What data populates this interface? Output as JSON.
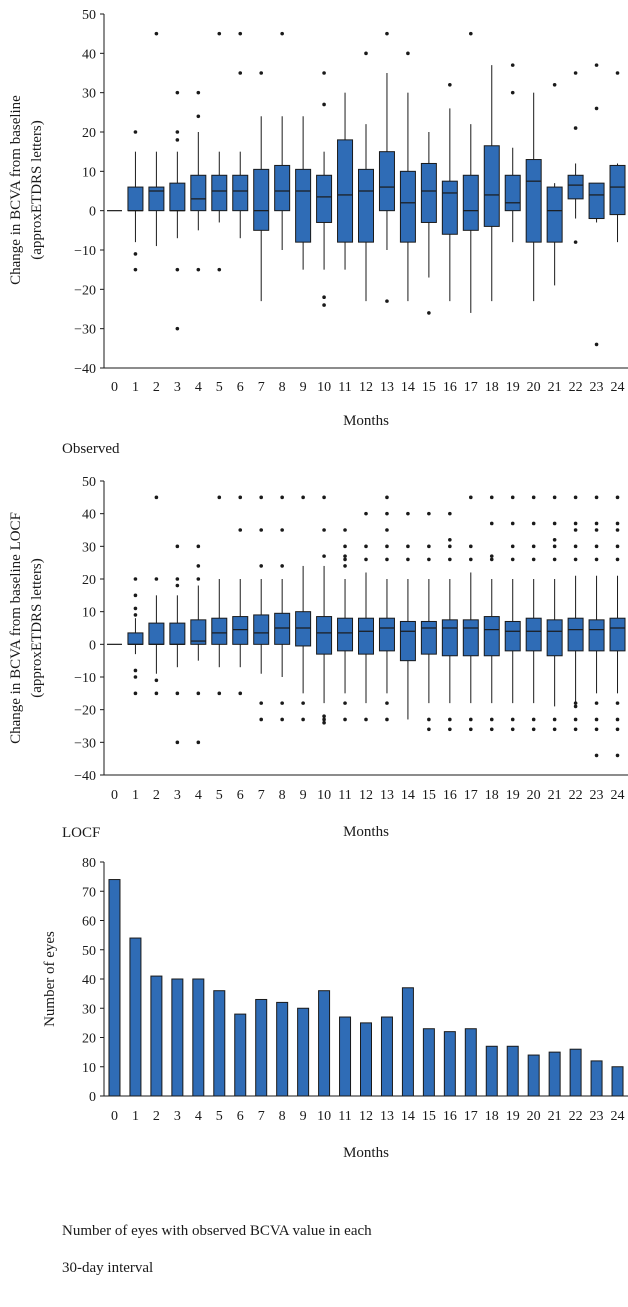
{
  "colors": {
    "fill": "#2f6cb6",
    "edge": "#1a1a1a"
  },
  "chart_data": [
    {
      "type": "box",
      "title": "",
      "xlabel": "Months",
      "ylabel_lines": [
        "Change in BCVA from baseline",
        "(approxETDRS letters)"
      ],
      "ylim": [
        -40,
        50
      ],
      "yticks": [
        -40,
        -30,
        -20,
        -10,
        0,
        10,
        20,
        30,
        40,
        50
      ],
      "categories": [
        "0",
        "1",
        "2",
        "3",
        "4",
        "5",
        "6",
        "7",
        "8",
        "9",
        "10",
        "11",
        "12",
        "13",
        "14",
        "15",
        "16",
        "17",
        "18",
        "19",
        "20",
        "21",
        "22",
        "23",
        "24"
      ],
      "caption": "Observed",
      "boxes": [
        {
          "lw": 0,
          "q1": 0,
          "med": 0,
          "q3": 0,
          "uw": 0,
          "out": []
        },
        {
          "lw": -8,
          "q1": 0,
          "med": 0,
          "q3": 6,
          "uw": 15,
          "out": [
            20,
            -11,
            -15
          ]
        },
        {
          "lw": -9,
          "q1": 0,
          "med": 5,
          "q3": 6,
          "uw": 15,
          "out": [
            45
          ]
        },
        {
          "lw": -7,
          "q1": 0,
          "med": 0,
          "q3": 7,
          "uw": 15,
          "out": [
            30,
            20,
            18,
            -15,
            -30
          ]
        },
        {
          "lw": -5,
          "q1": 0,
          "med": 3,
          "q3": 9,
          "uw": 20,
          "out": [
            30,
            24,
            -15
          ]
        },
        {
          "lw": -3,
          "q1": 0,
          "med": 5,
          "q3": 9,
          "uw": 15,
          "out": [
            45,
            -15
          ]
        },
        {
          "lw": -7,
          "q1": 0,
          "med": 5,
          "q3": 9,
          "uw": 15,
          "out": [
            45,
            35
          ]
        },
        {
          "lw": -23,
          "q1": -5,
          "med": 0,
          "q3": 10.5,
          "uw": 24,
          "out": [
            35
          ]
        },
        {
          "lw": -10,
          "q1": 0,
          "med": 5,
          "q3": 11.5,
          "uw": 24,
          "out": [
            45
          ]
        },
        {
          "lw": -15,
          "q1": -8,
          "med": 5,
          "q3": 10.5,
          "uw": 24,
          "out": []
        },
        {
          "lw": -15,
          "q1": -3,
          "med": 3.5,
          "q3": 9,
          "uw": 15,
          "out": [
            35,
            27,
            -22,
            -24
          ]
        },
        {
          "lw": -15,
          "q1": -8,
          "med": 4,
          "q3": 18,
          "uw": 30,
          "out": []
        },
        {
          "lw": -23,
          "q1": -8,
          "med": 5,
          "q3": 10.5,
          "uw": 22,
          "out": [
            40
          ]
        },
        {
          "lw": -10,
          "q1": 0,
          "med": 6,
          "q3": 15,
          "uw": 35,
          "out": [
            45,
            -23
          ]
        },
        {
          "lw": -23,
          "q1": -8,
          "med": 2,
          "q3": 10,
          "uw": 30,
          "out": [
            40
          ]
        },
        {
          "lw": -17,
          "q1": -3,
          "med": 5,
          "q3": 12,
          "uw": 20,
          "out": [
            -26
          ]
        },
        {
          "lw": -23,
          "q1": -6,
          "med": 4.5,
          "q3": 7.5,
          "uw": 26,
          "out": [
            32
          ]
        },
        {
          "lw": -26,
          "q1": -5,
          "med": 0,
          "q3": 9,
          "uw": 22,
          "out": [
            45
          ]
        },
        {
          "lw": -23,
          "q1": -4,
          "med": 4,
          "q3": 16.5,
          "uw": 37,
          "out": []
        },
        {
          "lw": -8,
          "q1": 0,
          "med": 2,
          "q3": 9,
          "uw": 16,
          "out": [
            37,
            30
          ]
        },
        {
          "lw": -23,
          "q1": -8,
          "med": 7.5,
          "q3": 13,
          "uw": 30,
          "out": []
        },
        {
          "lw": -19,
          "q1": -8,
          "med": 0,
          "q3": 6,
          "uw": 7,
          "out": [
            32
          ]
        },
        {
          "lw": -2,
          "q1": 3,
          "med": 6.5,
          "q3": 9,
          "uw": 12,
          "out": [
            35,
            21,
            -8
          ]
        },
        {
          "lw": -3,
          "q1": -2,
          "med": 4,
          "q3": 7,
          "uw": 7,
          "out": [
            37,
            26,
            -34
          ]
        },
        {
          "lw": -8,
          "q1": -1,
          "med": 6,
          "q3": 11.5,
          "uw": 12,
          "out": [
            35
          ]
        }
      ]
    },
    {
      "type": "box",
      "title": "",
      "xlabel": "Months",
      "ylabel_lines": [
        "Change in BCVA from baseline LOCF",
        "(approxETDRS letters)"
      ],
      "ylim": [
        -40,
        50
      ],
      "yticks": [
        -40,
        -30,
        -20,
        -10,
        0,
        10,
        20,
        30,
        40,
        50
      ],
      "categories": [
        "0",
        "1",
        "2",
        "3",
        "4",
        "5",
        "6",
        "7",
        "8",
        "9",
        "10",
        "11",
        "12",
        "13",
        "14",
        "15",
        "16",
        "17",
        "18",
        "19",
        "20",
        "21",
        "22",
        "23",
        "24"
      ],
      "caption": "LOCF",
      "boxes": [
        {
          "lw": 0,
          "q1": 0,
          "med": 0,
          "q3": 0,
          "uw": 0,
          "out": []
        },
        {
          "lw": -3,
          "q1": 0,
          "med": 0,
          "q3": 3.5,
          "uw": 8,
          "out": [
            20,
            15,
            11,
            9,
            -8,
            -10,
            -15
          ]
        },
        {
          "lw": -9,
          "q1": 0,
          "med": 0,
          "q3": 6.5,
          "uw": 15,
          "out": [
            45,
            20,
            -11,
            -15
          ]
        },
        {
          "lw": -7,
          "q1": 0,
          "med": 0,
          "q3": 6.5,
          "uw": 15,
          "out": [
            30,
            20,
            18,
            -15,
            -30
          ]
        },
        {
          "lw": -5,
          "q1": 0,
          "med": 1,
          "q3": 7.5,
          "uw": 18,
          "out": [
            30,
            24,
            20,
            -15,
            -30
          ]
        },
        {
          "lw": -7,
          "q1": 0,
          "med": 3.5,
          "q3": 8,
          "uw": 20,
          "out": [
            45,
            -15
          ]
        },
        {
          "lw": -7,
          "q1": 0,
          "med": 4.5,
          "q3": 8.5,
          "uw": 20,
          "out": [
            45,
            35,
            -15
          ]
        },
        {
          "lw": -9,
          "q1": 0,
          "med": 3.5,
          "q3": 9,
          "uw": 20,
          "out": [
            45,
            35,
            24,
            -18,
            -23
          ]
        },
        {
          "lw": -10,
          "q1": 0,
          "med": 5,
          "q3": 9.5,
          "uw": 20,
          "out": [
            45,
            35,
            24,
            -18,
            -23
          ]
        },
        {
          "lw": -15,
          "q1": -0.5,
          "med": 5,
          "q3": 10,
          "uw": 24,
          "out": [
            45,
            -18,
            -23
          ]
        },
        {
          "lw": -18,
          "q1": -3,
          "med": 3.5,
          "q3": 8.5,
          "uw": 24,
          "out": [
            45,
            35,
            27,
            -22,
            -23,
            -24
          ]
        },
        {
          "lw": -15,
          "q1": -2,
          "med": 3.5,
          "q3": 8,
          "uw": 20,
          "out": [
            35,
            30,
            27,
            26,
            24,
            -18,
            -23
          ]
        },
        {
          "lw": -18,
          "q1": -3,
          "med": 4,
          "q3": 8,
          "uw": 22,
          "out": [
            40,
            30,
            26,
            -23
          ]
        },
        {
          "lw": -15,
          "q1": -2,
          "med": 5,
          "q3": 8,
          "uw": 20,
          "out": [
            45,
            40,
            35,
            30,
            26,
            -18,
            -23
          ]
        },
        {
          "lw": -23,
          "q1": -5,
          "med": 4,
          "q3": 7,
          "uw": 20,
          "out": [
            40,
            30,
            26
          ]
        },
        {
          "lw": -18,
          "q1": -3,
          "med": 5,
          "q3": 7,
          "uw": 20,
          "out": [
            40,
            30,
            26,
            -23,
            -26
          ]
        },
        {
          "lw": -18,
          "q1": -3.5,
          "med": 5,
          "q3": 7.5,
          "uw": 20,
          "out": [
            40,
            32,
            30,
            26,
            -23,
            -26
          ]
        },
        {
          "lw": -18,
          "q1": -3.5,
          "med": 5,
          "q3": 7.5,
          "uw": 22,
          "out": [
            45,
            30,
            26,
            -23,
            -26
          ]
        },
        {
          "lw": -18,
          "q1": -3.5,
          "med": 4.5,
          "q3": 8.5,
          "uw": 20,
          "out": [
            45,
            37,
            27,
            26,
            -23,
            -26
          ]
        },
        {
          "lw": -18,
          "q1": -2,
          "med": 4,
          "q3": 7,
          "uw": 20,
          "out": [
            45,
            37,
            30,
            26,
            -23,
            -26
          ]
        },
        {
          "lw": -18,
          "q1": -2,
          "med": 4,
          "q3": 8,
          "uw": 20,
          "out": [
            45,
            37,
            30,
            26,
            -23,
            -26
          ]
        },
        {
          "lw": -19,
          "q1": -3.5,
          "med": 4,
          "q3": 7.5,
          "uw": 20,
          "out": [
            45,
            37,
            32,
            30,
            26,
            -23,
            -26
          ]
        },
        {
          "lw": -18,
          "q1": -2,
          "med": 4.5,
          "q3": 8,
          "uw": 21,
          "out": [
            45,
            37,
            35,
            30,
            26,
            -18,
            -19,
            -23,
            -26
          ]
        },
        {
          "lw": -15,
          "q1": -2,
          "med": 4.5,
          "q3": 7.5,
          "uw": 21,
          "out": [
            45,
            37,
            35,
            30,
            26,
            -18,
            -23,
            -26,
            -34
          ]
        },
        {
          "lw": -15,
          "q1": -2,
          "med": 5,
          "q3": 8,
          "uw": 21,
          "out": [
            45,
            37,
            35,
            30,
            26,
            -18,
            -23,
            -26,
            -34
          ]
        }
      ]
    },
    {
      "type": "bar",
      "title": "",
      "xlabel": "Months",
      "ylabel": "Number of eyes",
      "ylim": [
        0,
        80
      ],
      "yticks": [
        0,
        10,
        20,
        30,
        40,
        50,
        60,
        70,
        80
      ],
      "categories": [
        "0",
        "1",
        "2",
        "3",
        "4",
        "5",
        "6",
        "7",
        "8",
        "9",
        "10",
        "11",
        "12",
        "13",
        "14",
        "15",
        "16",
        "17",
        "18",
        "19",
        "20",
        "21",
        "22",
        "23",
        "24"
      ],
      "values": [
        74,
        54,
        41,
        40,
        40,
        36,
        28,
        33,
        32,
        30,
        36,
        27,
        25,
        27,
        37,
        23,
        22,
        23,
        17,
        17,
        14,
        15,
        16,
        12,
        10
      ],
      "caption_lines": [
        "Number of eyes with observed BCVA value in each",
        "30-day interval"
      ]
    }
  ]
}
